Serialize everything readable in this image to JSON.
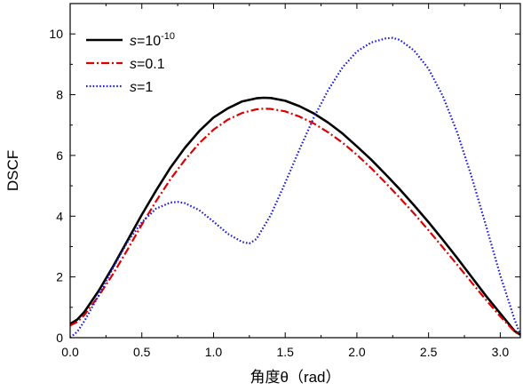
{
  "chart_data": {
    "type": "line",
    "xlabel": "角度θ（rad）",
    "ylabel": "DSCF",
    "xlim": [
      0,
      3.14
    ],
    "ylim": [
      0,
      11
    ],
    "xticks": [
      "0.0",
      "0.5",
      "1.0",
      "1.5",
      "2.0",
      "2.5",
      "3.0"
    ],
    "yticks": [
      "0",
      "2",
      "4",
      "6",
      "8",
      "10"
    ],
    "legend_position": "top-left",
    "grid": false,
    "series": [
      {
        "label_prefix": "s",
        "label_value": "=10",
        "label_exp": "-10",
        "color": "#000000",
        "style": "solid",
        "x": [
          0.0,
          0.05,
          0.1,
          0.2,
          0.3,
          0.4,
          0.5,
          0.6,
          0.7,
          0.8,
          0.9,
          1.0,
          1.1,
          1.2,
          1.3,
          1.35,
          1.4,
          1.5,
          1.6,
          1.7,
          1.8,
          1.9,
          2.0,
          2.1,
          2.2,
          2.3,
          2.4,
          2.5,
          2.6,
          2.7,
          2.8,
          2.9,
          3.0,
          3.1,
          3.14
        ],
        "y": [
          0.45,
          0.6,
          0.85,
          1.55,
          2.35,
          3.2,
          4.05,
          4.85,
          5.6,
          6.25,
          6.8,
          7.25,
          7.55,
          7.78,
          7.88,
          7.9,
          7.89,
          7.8,
          7.62,
          7.38,
          7.08,
          6.72,
          6.3,
          5.86,
          5.38,
          4.88,
          4.35,
          3.8,
          3.22,
          2.62,
          2.0,
          1.38,
          0.8,
          0.22,
          0.1
        ]
      },
      {
        "label_prefix": "s",
        "label_value": "=0.1",
        "label_exp": "",
        "color": "#dd0000",
        "style": "dashdot",
        "x": [
          0.0,
          0.05,
          0.1,
          0.2,
          0.3,
          0.4,
          0.5,
          0.6,
          0.7,
          0.8,
          0.9,
          1.0,
          1.1,
          1.2,
          1.3,
          1.35,
          1.4,
          1.5,
          1.6,
          1.7,
          1.8,
          1.9,
          2.0,
          2.1,
          2.2,
          2.3,
          2.4,
          2.5,
          2.6,
          2.7,
          2.8,
          2.9,
          3.0,
          3.1,
          3.14
        ],
        "y": [
          0.4,
          0.52,
          0.75,
          1.38,
          2.1,
          2.9,
          3.72,
          4.5,
          5.22,
          5.85,
          6.4,
          6.85,
          7.18,
          7.4,
          7.52,
          7.54,
          7.53,
          7.45,
          7.28,
          7.05,
          6.76,
          6.42,
          6.02,
          5.58,
          5.1,
          4.6,
          4.08,
          3.53,
          2.97,
          2.4,
          1.82,
          1.25,
          0.7,
          0.2,
          0.08
        ]
      },
      {
        "label_prefix": "s",
        "label_value": "=1",
        "label_exp": "",
        "color": "#1c1cdc",
        "style": "dotted",
        "x": [
          0.0,
          0.05,
          0.1,
          0.2,
          0.3,
          0.4,
          0.5,
          0.6,
          0.7,
          0.75,
          0.8,
          0.9,
          1.0,
          1.1,
          1.2,
          1.25,
          1.3,
          1.4,
          1.5,
          1.6,
          1.7,
          1.8,
          1.9,
          2.0,
          2.1,
          2.2,
          2.25,
          2.3,
          2.4,
          2.5,
          2.6,
          2.7,
          2.8,
          2.9,
          3.0,
          3.1,
          3.14
        ],
        "y": [
          0.0,
          0.2,
          0.55,
          1.4,
          2.3,
          3.15,
          3.8,
          4.25,
          4.45,
          4.47,
          4.43,
          4.2,
          3.82,
          3.42,
          3.15,
          3.1,
          3.25,
          4.05,
          5.1,
          6.2,
          7.25,
          8.15,
          8.9,
          9.42,
          9.72,
          9.85,
          9.87,
          9.8,
          9.45,
          8.85,
          7.95,
          6.75,
          5.3,
          3.7,
          2.05,
          0.6,
          0.1
        ]
      }
    ]
  }
}
